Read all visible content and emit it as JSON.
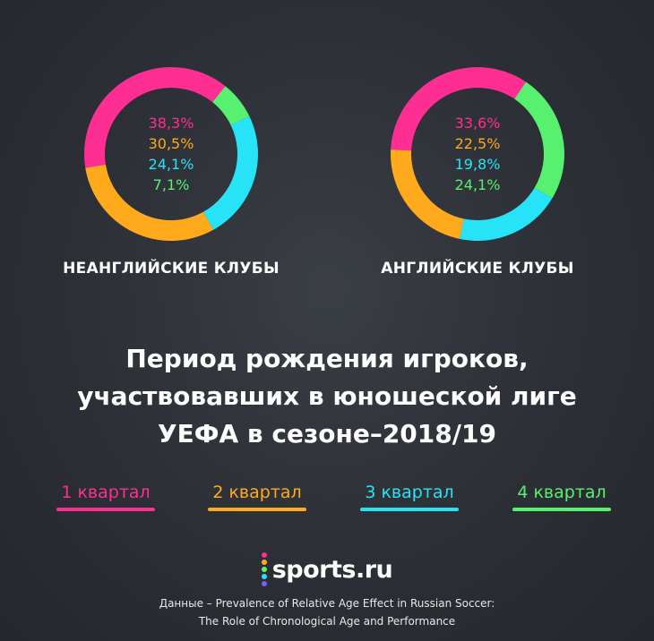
{
  "chart_data": [
    {
      "type": "pie",
      "title": "НЕАНГЛИЙСКИЕ КЛУБЫ",
      "categories": [
        "1 квартал",
        "2 квартал",
        "3 квартал",
        "4 квартал"
      ],
      "values": [
        38.3,
        30.5,
        24.1,
        7.1
      ],
      "labels": [
        "38,3%",
        "30,5%",
        "24,1%",
        "7,1%"
      ]
    },
    {
      "type": "pie",
      "title": "АНГЛИЙСКИЕ КЛУБЫ",
      "categories": [
        "1 квартал",
        "2 квартал",
        "3 квартал",
        "4 квартал"
      ],
      "values": [
        33.6,
        22.5,
        19.8,
        24.1
      ],
      "labels": [
        "33,6%",
        "22,5%",
        "19,8%",
        "24,1%"
      ]
    }
  ],
  "colors": [
    "#ff2e93",
    "#ffaa1d",
    "#27e3f7",
    "#58f06f"
  ],
  "headline": [
    "Период рождения игроков,",
    "участвовавших в юношеской лиге",
    "УЕФА в сезоне–2018/19"
  ],
  "legend": [
    "1 квартал",
    "2 квартал",
    "3 квартал",
    "4 квартал"
  ],
  "brand": "sports.ru",
  "brand_dot_colors": [
    "#ff2e93",
    "#ffaa1d",
    "#58f06f",
    "#27e3f7",
    "#7b5cff"
  ],
  "source": [
    "Данные – Prevalence of Relative Age Effect in Russian Soccer:",
    "The Role of Chronological Age and Performance"
  ]
}
